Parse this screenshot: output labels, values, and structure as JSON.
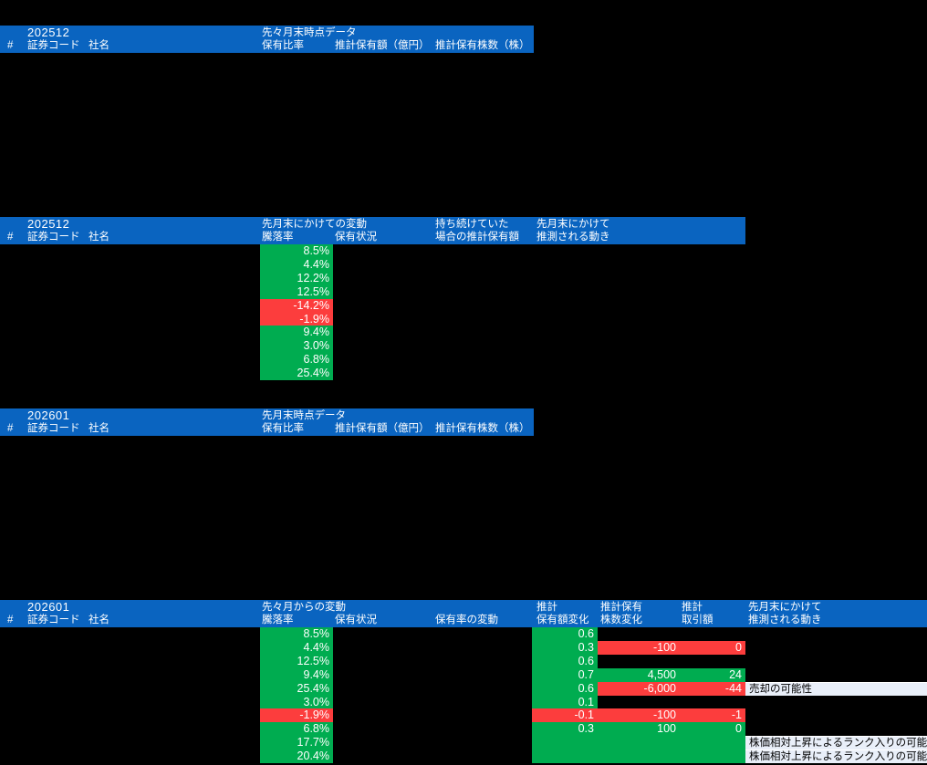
{
  "colors": {
    "header_blue": "#0a64c0",
    "up_green": "#00ac50",
    "down_red": "#fc3d3d",
    "note_bg": "#e9eff9"
  },
  "h1": {
    "period": "202512",
    "group": "先々月末時点データ",
    "num": "#",
    "code": "証券コード",
    "name": "社名",
    "ratio": "保有比率",
    "amount": "推計保有額（億円）",
    "shares": "推計保有株数（株）"
  },
  "h2": {
    "period": "202512",
    "group": "先月末にかけての変動",
    "num": "#",
    "code": "証券コード",
    "name": "社名",
    "change": "騰落率",
    "status": "保有状況",
    "hold1": "持ち続けていた",
    "hold2": "場合の推計保有額",
    "move1": "先月末にかけて",
    "move2": "推測される動き"
  },
  "h3": {
    "period": "202601",
    "group": "先月末時点データ",
    "num": "#",
    "code": "証券コード",
    "name": "社名",
    "ratio": "保有比率",
    "amount": "推計保有額（億円）",
    "shares": "推計保有株数（株）"
  },
  "h4": {
    "period": "202601",
    "group": "先々月からの変動",
    "num": "#",
    "code": "証券コード",
    "name": "社名",
    "change": "騰落率",
    "status": "保有状況",
    "ratio_change": "保有率の変動",
    "est_amt1": "推計",
    "est_amt2": "保有額変化",
    "est_sh1": "推計保有",
    "est_sh2": "株数変化",
    "est_tr1": "推計",
    "est_tr2": "取引額",
    "move1": "先月末にかけて",
    "move2": "推測される動き"
  },
  "rows2": [
    {
      "v": "8.5%",
      "c": "up"
    },
    {
      "v": "4.4%",
      "c": "up"
    },
    {
      "v": "12.2%",
      "c": "up"
    },
    {
      "v": "12.5%",
      "c": "up"
    },
    {
      "v": "-14.2%",
      "c": "down"
    },
    {
      "v": "-1.9%",
      "c": "down"
    },
    {
      "v": "9.4%",
      "c": "up"
    },
    {
      "v": "3.0%",
      "c": "up"
    },
    {
      "v": "6.8%",
      "c": "up"
    },
    {
      "v": "25.4%",
      "c": "up"
    }
  ],
  "rows4": [
    {
      "change": [
        "8.5%",
        "up"
      ],
      "amt": [
        "0.6",
        "up"
      ]
    },
    {
      "change": [
        "4.4%",
        "up"
      ],
      "amt": [
        "0.3",
        "up"
      ],
      "shares": [
        "-100",
        "down"
      ],
      "trade": [
        "0",
        "down"
      ]
    },
    {
      "change": [
        "12.5%",
        "up"
      ],
      "amt": [
        "0.6",
        "up"
      ]
    },
    {
      "change": [
        "9.4%",
        "up"
      ],
      "amt": [
        "0.7",
        "up"
      ],
      "shares": [
        "4,500",
        "up"
      ],
      "trade": [
        "24",
        "up"
      ]
    },
    {
      "change": [
        "25.4%",
        "up"
      ],
      "amt": [
        "0.6",
        "up"
      ],
      "shares": [
        "-6,000",
        "down"
      ],
      "trade": [
        "-44",
        "down"
      ],
      "note": "売却の可能性"
    },
    {
      "change": [
        "3.0%",
        "up"
      ],
      "amt": [
        "0.1",
        "up"
      ]
    },
    {
      "change": [
        "-1.9%",
        "down"
      ],
      "amt": [
        "-0.1",
        "down"
      ],
      "shares": [
        "-100",
        "down"
      ],
      "trade": [
        "-1",
        "down"
      ]
    },
    {
      "change": [
        "6.8%",
        "up"
      ],
      "amt": [
        "0.3",
        "up"
      ],
      "shares": [
        "100",
        "up"
      ],
      "trade": [
        "0",
        "up"
      ]
    },
    {
      "change": [
        "17.7%",
        "up"
      ],
      "amt": [
        "",
        "up"
      ],
      "shares": [
        "",
        "up"
      ],
      "trade": [
        "",
        "up"
      ],
      "note": "株価相対上昇によるランク入りの可能性"
    },
    {
      "change": [
        "20.4%",
        "up"
      ],
      "amt": [
        "",
        "up"
      ],
      "shares": [
        "",
        "up"
      ],
      "trade": [
        "",
        "up"
      ],
      "note": "株価相対上昇によるランク入りの可能性"
    }
  ]
}
